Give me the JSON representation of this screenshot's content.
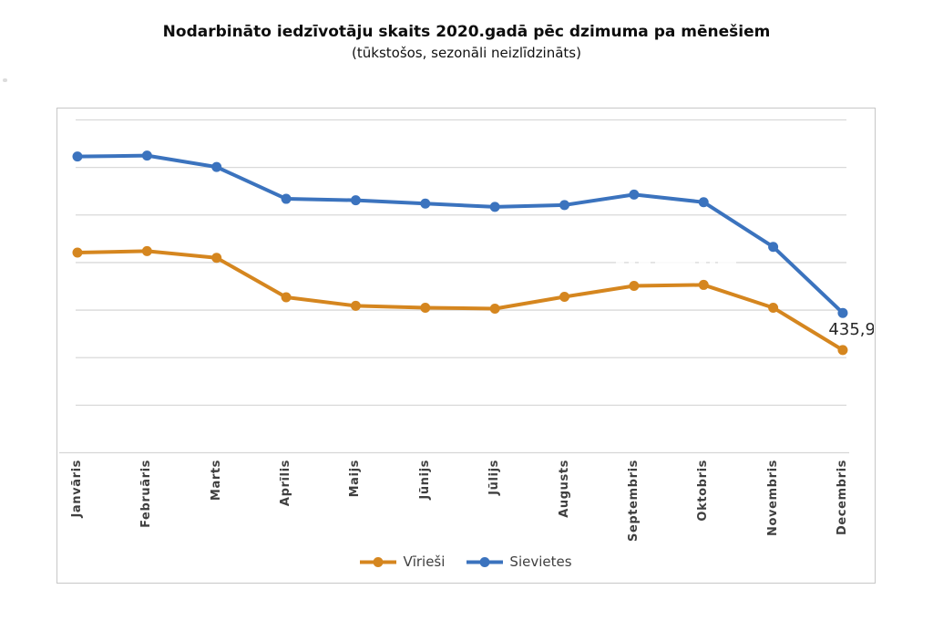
{
  "chart_data": {
    "type": "line",
    "title": "Nodarbināto iedzīvotāju skaits 2020.gadā pēc dzimuma pa mēnešiem",
    "subtitle": "(tūkstošos, sezonāli neizlīdzināts)",
    "categories": [
      "Janvāris",
      "Februāris",
      "Marts",
      "Aprīlis",
      "Maijs",
      "Jūnijs",
      "Jūlijs",
      "Augusts",
      "Septembris",
      "Oktobris",
      "Novembris",
      "Decembris"
    ],
    "series": [
      {
        "name": "Vīrieši",
        "color": "#D5861F",
        "values": [
          448.6,
          448.9,
          447.5,
          439.2,
          437.4,
          437.0,
          436.8,
          439.3,
          441.6,
          441.8,
          437.0,
          428.1
        ]
      },
      {
        "name": "Sievietes",
        "color": "#3B73BE",
        "values": [
          468.8,
          469.0,
          466.6,
          459.9,
          459.6,
          458.9,
          458.2,
          458.6,
          460.8,
          459.2,
          449.8,
          435.9
        ]
      }
    ],
    "data_labels": [
      {
        "series": "Sievietes",
        "category": "Decembris",
        "value": 435.9,
        "text": "435,9"
      }
    ],
    "y_axis": {
      "tick_labels_visible": false,
      "ylim": [
        406.5,
        476.5
      ],
      "gridline_step": 10,
      "grid": true
    },
    "x_axis": {
      "label_rotation_deg": 90
    },
    "legend": {
      "position": "bottom",
      "entries": [
        "Vīrieši",
        "Sievietes"
      ]
    },
    "colors": {
      "gridline": "#D9D9D9",
      "axis_line": "#D6D6D6",
      "plot_border": "#C7C7C7",
      "label_text": "#3F3F3F",
      "data_label_text": "#262626"
    }
  }
}
